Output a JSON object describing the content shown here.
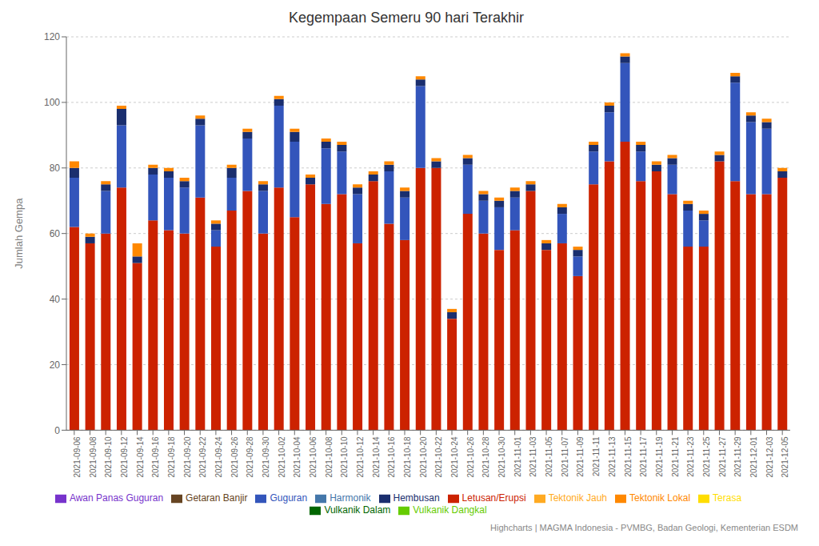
{
  "chart_data": {
    "type": "bar",
    "title": "Kegempaan Semeru 90 hari Terakhir",
    "ylabel": "Jumlah Gempa",
    "stacked": true,
    "grid": true,
    "legend": "bottom",
    "annotations": [
      "Highcharts | MAGMA Indonesia - PVMBG, Badan Geologi, Kementerian ESDM"
    ],
    "ylim": [
      0,
      120
    ],
    "yticks": [
      0,
      20,
      40,
      60,
      80,
      100,
      120
    ],
    "categories": [
      "2021-09-06",
      "2021-09-08",
      "2021-09-10",
      "2021-09-12",
      "2021-09-14",
      "2021-09-16",
      "2021-09-18",
      "2021-09-20",
      "2021-09-22",
      "2021-09-24",
      "2021-09-26",
      "2021-09-28",
      "2021-09-30",
      "2021-10-02",
      "2021-10-04",
      "2021-10-06",
      "2021-10-08",
      "2021-10-10",
      "2021-10-12",
      "2021-10-14",
      "2021-10-16",
      "2021-10-18",
      "2021-10-20",
      "2021-10-22",
      "2021-10-24",
      "2021-10-26",
      "2021-10-28",
      "2021-10-30",
      "2021-11-01",
      "2021-11-03",
      "2021-11-05",
      "2021-11-07",
      "2021-11-09",
      "2021-11-11",
      "2021-11-13",
      "2021-11-15",
      "2021-11-17",
      "2021-11-19",
      "2021-11-21",
      "2021-11-23",
      "2021-11-25",
      "2021-11-27",
      "2021-11-29",
      "2021-12-01",
      "2021-12-03",
      "2021-12-05"
    ],
    "series": [
      {
        "name": "Letusan/Erupsi",
        "color": "#cc2200",
        "values": [
          62,
          57,
          60,
          74,
          51,
          64,
          61,
          60,
          71,
          56,
          67,
          73,
          60,
          74,
          65,
          75,
          69,
          72,
          57,
          76,
          63,
          58,
          80,
          80,
          34,
          66,
          60,
          55,
          61,
          73,
          55,
          57,
          47,
          75,
          82,
          88,
          76,
          79,
          72,
          56,
          56,
          82,
          76,
          72,
          72,
          77
        ]
      },
      {
        "name": "Awan Panas Guguran",
        "color": "#7733cc",
        "values": [
          0,
          0,
          0,
          0,
          0,
          0,
          0,
          0,
          0,
          0,
          0,
          0,
          0,
          0,
          0,
          0,
          0,
          0,
          0,
          0,
          0,
          0,
          0,
          0,
          0,
          0,
          0,
          0,
          0,
          0,
          0,
          0,
          0,
          0,
          0,
          0,
          0,
          0,
          0,
          0,
          0,
          0,
          0,
          0,
          0,
          0
        ]
      },
      {
        "name": "Guguran",
        "color": "#3355bb",
        "values": [
          15,
          0,
          13,
          19,
          0,
          14,
          16,
          14,
          22,
          5,
          10,
          16,
          13,
          25,
          23,
          0,
          17,
          13,
          15,
          0,
          16,
          13,
          25,
          0,
          0,
          15,
          10,
          13,
          10,
          0,
          0,
          9,
          6,
          10,
          15,
          24,
          9,
          0,
          9,
          11,
          8,
          0,
          30,
          22,
          20,
          0
        ]
      },
      {
        "name": "Hembusan",
        "color": "#1a2e6e",
        "values": [
          3,
          2,
          2,
          5,
          2,
          2,
          2,
          2,
          2,
          2,
          3,
          2,
          2,
          2,
          3,
          2,
          2,
          2,
          2,
          2,
          2,
          2,
          2,
          2,
          2,
          2,
          2,
          2,
          2,
          2,
          2,
          2,
          2,
          2,
          2,
          2,
          2,
          2,
          2,
          2,
          2,
          2,
          2,
          2,
          2,
          2
        ]
      },
      {
        "name": "Harmonik",
        "color": "#4477aa",
        "values": [
          0,
          0,
          0,
          0,
          0,
          0,
          0,
          0,
          0,
          0,
          0,
          0,
          0,
          0,
          0,
          0,
          0,
          0,
          0,
          0,
          0,
          0,
          0,
          0,
          0,
          0,
          0,
          0,
          0,
          0,
          0,
          0,
          0,
          0,
          0,
          0,
          0,
          0,
          0,
          0,
          0,
          0,
          0,
          0,
          0,
          0
        ]
      },
      {
        "name": "Vulkanik Dangkal",
        "color": "#66cc00",
        "values": [
          0,
          0,
          0,
          0,
          0,
          0,
          0,
          0,
          0,
          0,
          0,
          0,
          0,
          0,
          0,
          0,
          0,
          0,
          0,
          0,
          0,
          0,
          0,
          0,
          0,
          0,
          0,
          0,
          0,
          0,
          0,
          0,
          0,
          0,
          0,
          0,
          0,
          0,
          0,
          0,
          0,
          0,
          0,
          0,
          0,
          0
        ]
      },
      {
        "name": "Vulkanik Dalam",
        "color": "#006600",
        "values": [
          0,
          0,
          0,
          0,
          0,
          0,
          0,
          0,
          0,
          0,
          0,
          0,
          0,
          0,
          0,
          0,
          0,
          0,
          0,
          0,
          0,
          0,
          0,
          0,
          0,
          0,
          0,
          0,
          0,
          0,
          0,
          0,
          0,
          0,
          0,
          0,
          0,
          0,
          0,
          0,
          0,
          0,
          0,
          0,
          0,
          0
        ]
      },
      {
        "name": "Tektonik Lokal",
        "color": "#ff8800",
        "values": [
          2,
          1,
          1,
          1,
          4,
          1,
          1,
          1,
          1,
          1,
          1,
          1,
          1,
          1,
          1,
          1,
          1,
          1,
          1,
          1,
          1,
          1,
          1,
          1,
          1,
          1,
          1,
          1,
          1,
          1,
          1,
          1,
          1,
          1,
          1,
          1,
          1,
          1,
          1,
          1,
          1,
          1,
          1,
          1,
          1,
          1
        ]
      },
      {
        "name": "Terasa",
        "color": "#ffdd00",
        "values": [
          0,
          0,
          0,
          0,
          0,
          0,
          0,
          0,
          0,
          0,
          0,
          0,
          0,
          0,
          0,
          0,
          0,
          0,
          0,
          0,
          0,
          0,
          0,
          0,
          0,
          0,
          0,
          0,
          0,
          0,
          0,
          0,
          0,
          0,
          0,
          0,
          0,
          0,
          0,
          0,
          0,
          0,
          0,
          0,
          0,
          0
        ]
      },
      {
        "name": "Tektonik Jauh",
        "color": "#ffaa22",
        "values": [
          0,
          0,
          0,
          0,
          0,
          0,
          0,
          0,
          0,
          0,
          0,
          0,
          0,
          0,
          0,
          0,
          0,
          0,
          0,
          0,
          0,
          0,
          0,
          0,
          0,
          0,
          0,
          0,
          0,
          0,
          0,
          0,
          0,
          0,
          0,
          0,
          0,
          0,
          0,
          0,
          0,
          0,
          0,
          0,
          0,
          0
        ]
      },
      {
        "name": "Getaran Banjir",
        "color": "#664422",
        "values": [
          0,
          0,
          0,
          0,
          0,
          0,
          0,
          0,
          0,
          0,
          0,
          0,
          0,
          0,
          0,
          0,
          0,
          0,
          0,
          0,
          0,
          0,
          0,
          0,
          0,
          0,
          0,
          0,
          0,
          0,
          0,
          0,
          0,
          0,
          0,
          0,
          0,
          0,
          0,
          0,
          0,
          0,
          0,
          0,
          0,
          0
        ]
      }
    ]
  }
}
